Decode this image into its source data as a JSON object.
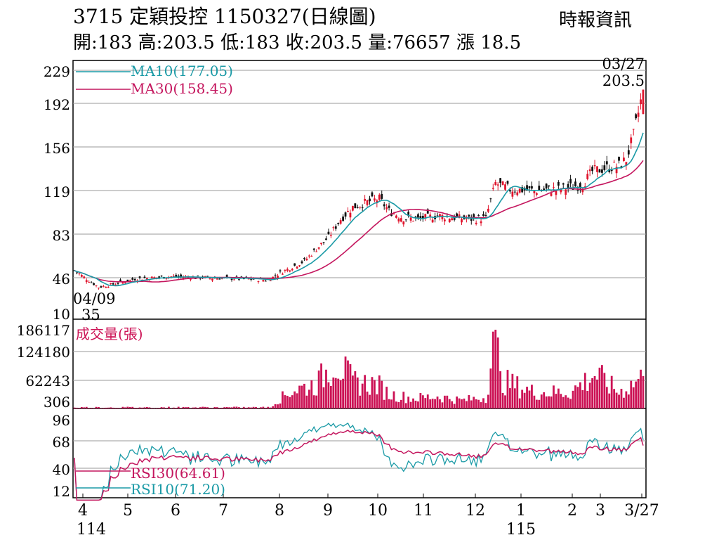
{
  "header": {
    "title": "3715  定穎投控 1150327(日線圖)",
    "stats": "開:183 高:203.5 低:183 收:203.5 量:76657 漲 18.5",
    "source": "時報資訊"
  },
  "colors": {
    "up": "#e0142c",
    "down": "#111111",
    "ma10": "#1a9aa6",
    "ma30": "#c4165e",
    "volume": "#cc1255",
    "rsi30": "#c4165e",
    "rsi10": "#1a9aa6",
    "grid": "#999999"
  },
  "chart_data": [
    {
      "type": "candlestick",
      "title": "",
      "y_ticks": [
        "229",
        "192",
        "156",
        "119",
        "83",
        "46",
        "10"
      ],
      "ylim": [
        10,
        229
      ],
      "series": [
        {
          "name": "MA10(177.05)",
          "last": 177.05
        },
        {
          "name": "MA30(158.45)",
          "last": 158.45
        }
      ],
      "annotations": [
        {
          "date": "03/27",
          "value": "203.5",
          "kind": "high"
        },
        {
          "date": "04/09",
          "value": "35",
          "kind": "low"
        }
      ],
      "x_ticks": [
        "4",
        "5",
        "6",
        "7",
        "8",
        "9",
        "10",
        "11",
        "12",
        "1",
        "2",
        "3",
        "3/27"
      ],
      "x_year_labels": [
        {
          "month": "4",
          "year": "114"
        },
        {
          "month": "1",
          "year": "115"
        }
      ],
      "grid": true
    },
    {
      "type": "bar",
      "title": "成交量(張)",
      "y_ticks": [
        "186117",
        "124180",
        "62243",
        "306"
      ],
      "ylim": [
        0,
        186117
      ],
      "last_volume": 76657
    },
    {
      "type": "line",
      "y_ticks": [
        "96",
        "68",
        "40",
        "12"
      ],
      "ylim": [
        0,
        100
      ],
      "series": [
        {
          "name": "RSI30(64.61)",
          "last": 64.61
        },
        {
          "name": "RSI10(71.20)",
          "last": 71.2
        }
      ]
    }
  ]
}
